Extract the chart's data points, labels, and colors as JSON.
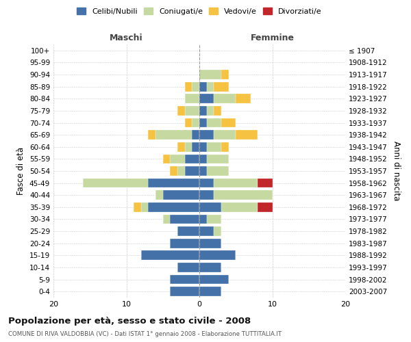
{
  "age_groups": [
    "0-4",
    "5-9",
    "10-14",
    "15-19",
    "20-24",
    "25-29",
    "30-34",
    "35-39",
    "40-44",
    "45-49",
    "50-54",
    "55-59",
    "60-64",
    "65-69",
    "70-74",
    "75-79",
    "80-84",
    "85-89",
    "90-94",
    "95-99",
    "100+"
  ],
  "birth_years": [
    "2003-2007",
    "1998-2002",
    "1993-1997",
    "1988-1992",
    "1983-1987",
    "1978-1982",
    "1973-1977",
    "1968-1972",
    "1963-1967",
    "1958-1962",
    "1953-1957",
    "1948-1952",
    "1943-1947",
    "1938-1942",
    "1933-1937",
    "1928-1932",
    "1923-1927",
    "1918-1922",
    "1913-1917",
    "1908-1912",
    "≤ 1907"
  ],
  "maschi": {
    "celibi": [
      4,
      4,
      3,
      8,
      4,
      3,
      4,
      7,
      5,
      7,
      2,
      2,
      1,
      1,
      0,
      0,
      0,
      0,
      0,
      0,
      0
    ],
    "coniugati": [
      0,
      0,
      0,
      0,
      0,
      0,
      1,
      1,
      1,
      9,
      1,
      2,
      1,
      5,
      1,
      2,
      2,
      1,
      0,
      0,
      0
    ],
    "vedovi": [
      0,
      0,
      0,
      0,
      0,
      0,
      0,
      1,
      0,
      0,
      1,
      1,
      1,
      1,
      1,
      1,
      0,
      1,
      0,
      0,
      0
    ],
    "divorziati": [
      0,
      0,
      0,
      0,
      0,
      0,
      0,
      0,
      0,
      0,
      0,
      0,
      0,
      0,
      0,
      0,
      0,
      0,
      0,
      0,
      0
    ]
  },
  "femmine": {
    "nubili": [
      3,
      4,
      3,
      5,
      3,
      2,
      1,
      3,
      2,
      2,
      1,
      1,
      1,
      2,
      1,
      1,
      2,
      1,
      0,
      0,
      0
    ],
    "coniugate": [
      0,
      0,
      0,
      0,
      0,
      1,
      2,
      5,
      8,
      6,
      3,
      3,
      2,
      3,
      2,
      1,
      3,
      1,
      3,
      0,
      0
    ],
    "vedove": [
      0,
      0,
      0,
      0,
      0,
      0,
      0,
      0,
      0,
      0,
      0,
      0,
      1,
      3,
      2,
      1,
      2,
      2,
      1,
      0,
      0
    ],
    "divorziate": [
      0,
      0,
      0,
      0,
      0,
      0,
      0,
      2,
      0,
      2,
      0,
      0,
      0,
      0,
      0,
      0,
      0,
      0,
      0,
      0,
      0
    ]
  },
  "colors": {
    "celibi_nubili": "#4472a8",
    "coniugati": "#c5d9a0",
    "vedovi": "#f5c242",
    "divorziati": "#c0262a"
  },
  "xlim": [
    -20,
    20
  ],
  "xticks": [
    -20,
    -10,
    0,
    10,
    20
  ],
  "xticklabels": [
    "20",
    "10",
    "0",
    "10",
    "20"
  ],
  "title": "Popolazione per età, sesso e stato civile - 2008",
  "subtitle": "COMUNE DI RIVA VALDOBBIA (VC) - Dati ISTAT 1° gennaio 2008 - Elaborazione TUTTITALIA.IT",
  "ylabel_left": "Fasce di età",
  "ylabel_right": "Anni di nascita",
  "maschi_label": "Maschi",
  "femmine_label": "Femmine",
  "legend_labels": [
    "Celibi/Nubili",
    "Coniugati/e",
    "Vedovi/e",
    "Divorziati/e"
  ],
  "bg_color": "#ffffff",
  "grid_color": "#cccccc"
}
